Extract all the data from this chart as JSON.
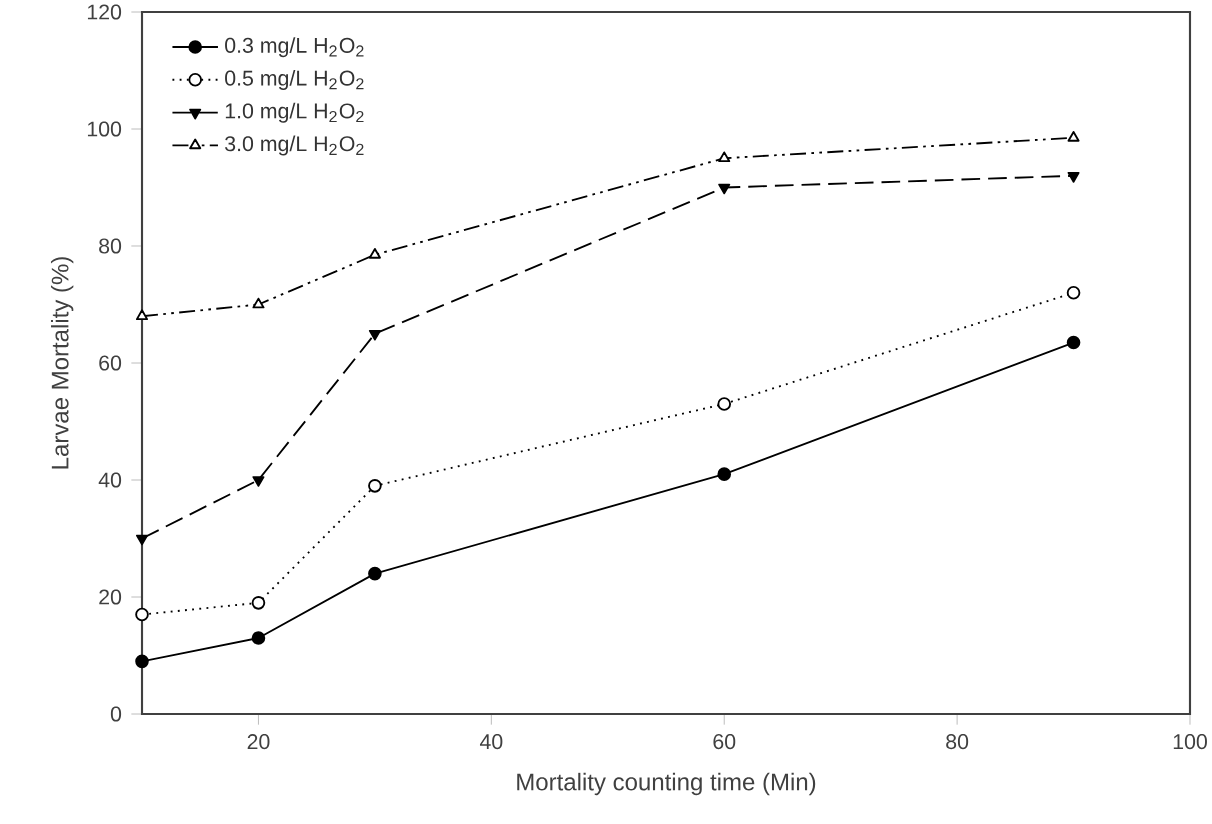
{
  "chart_data": {
    "type": "line",
    "xlabel": "Mortality counting time (Min)",
    "ylabel": "Larvae Mortality (%)",
    "x": [
      10,
      20,
      30,
      60,
      90
    ],
    "series": [
      {
        "name": "0.3 mg/L H$_{2}$O$_{2}$",
        "color": "#000000",
        "marker": "circle",
        "line_style": "solid",
        "values": [
          9,
          13,
          24,
          41,
          63.5
        ]
      },
      {
        "name": "0.5 mg/L H$_{2}$O$_{2}$",
        "color": "#000000",
        "marker": "circle-open",
        "line_style": "dotted",
        "values": [
          17,
          19,
          39,
          53,
          72
        ]
      },
      {
        "name": "1.0 mg/L H$_{2}$O$_{2}$",
        "color": "#000000",
        "marker": "triangle-down",
        "line_style": "dashed",
        "values": [
          30,
          40,
          65,
          90,
          92
        ]
      },
      {
        "name": "3.0 mg/L H$_{2}$O$_{2}$",
        "color": "#000000",
        "marker": "triangle-open",
        "line_style": "dashdotdot",
        "values": [
          68,
          70,
          78.5,
          95,
          98.5
        ]
      }
    ],
    "xlim": [
      10,
      100
    ],
    "xticks": [
      20,
      40,
      60,
      80,
      100
    ],
    "ylim": [
      0,
      120
    ],
    "yticks": [
      0,
      20,
      40,
      60,
      80,
      100,
      120
    ],
    "grid": false,
    "legend": "top left"
  }
}
